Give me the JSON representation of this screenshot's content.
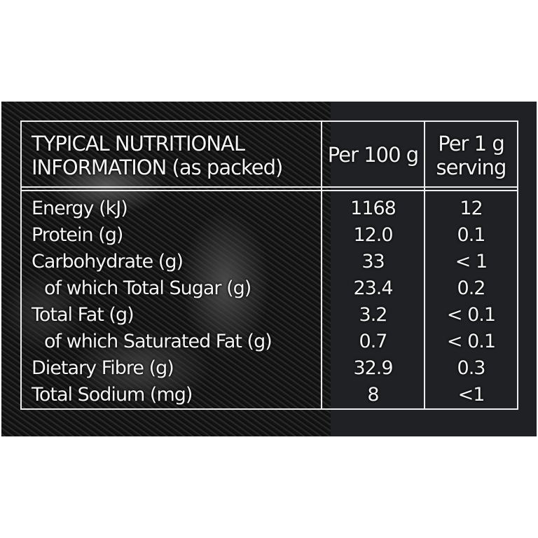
{
  "header": {
    "title_line1": "TYPICAL NUTRITIONAL",
    "title_line2": "INFORMATION (as packed)",
    "col1": "Per 100 g",
    "col2_line1": "Per 1 g",
    "col2_line2": "serving"
  },
  "rows": [
    {
      "label": "Energy (kJ)",
      "per100": "1168",
      "perServing": "12"
    },
    {
      "label": "Protein (g)",
      "per100": "12.0",
      "perServing": "0.1"
    },
    {
      "label": "Carbohydrate (g)",
      "per100": "33",
      "perServing": "< 1"
    },
    {
      "label": "  of which Total Sugar (g)",
      "per100": "23.4",
      "perServing": "0.2"
    },
    {
      "label": "Total Fat (g)",
      "per100": "3.2",
      "perServing": "< 0.1"
    },
    {
      "label": "  of which Saturated Fat (g)",
      "per100": "0.7",
      "perServing": "< 0.1"
    },
    {
      "label": "Dietary Fibre (g)",
      "per100": "32.9",
      "perServing": "0.3"
    },
    {
      "label": "Total Sodium (mg)",
      "per100": "8",
      "perServing": "<1"
    }
  ]
}
